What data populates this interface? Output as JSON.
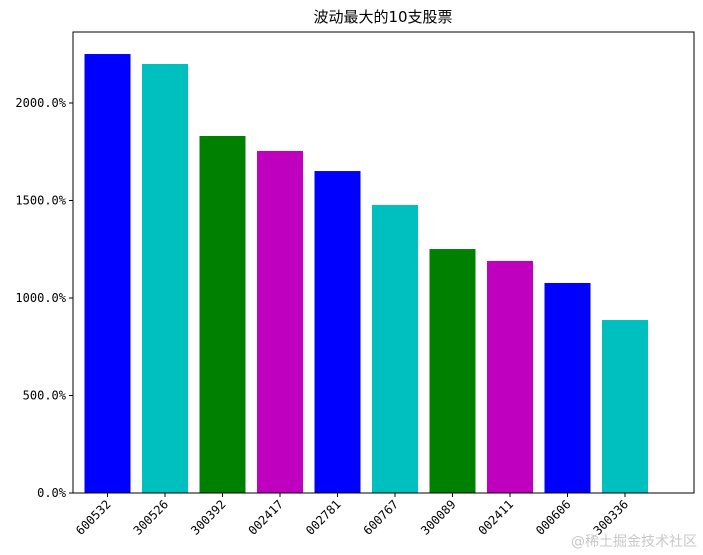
{
  "chart_data": {
    "type": "bar",
    "title": "波动最大的10支股票",
    "categories": [
      "600532",
      "300526",
      "300392",
      "002417",
      "002781",
      "600767",
      "300089",
      "002411",
      "000606",
      "300336"
    ],
    "values": [
      2251,
      2200,
      1831,
      1754,
      1651,
      1477,
      1251,
      1190,
      1077,
      887
    ],
    "colors": [
      "#0000ff",
      "#00bfbf",
      "#008000",
      "#bf00bf",
      "#0000ff",
      "#00bfbf",
      "#008000",
      "#bf00bf",
      "#0000ff",
      "#00bfbf"
    ],
    "ylim": [
      0,
      2364
    ],
    "yticks": [
      {
        "value": 0,
        "label": "0.0%"
      },
      {
        "value": 500,
        "label": "500.0%"
      },
      {
        "value": 1000,
        "label": "1000.0%"
      },
      {
        "value": 1500,
        "label": "1500.0%"
      },
      {
        "value": 2000,
        "label": "2000.0%"
      }
    ],
    "grid": false,
    "watermark": "@稀土掘金技术社区"
  }
}
